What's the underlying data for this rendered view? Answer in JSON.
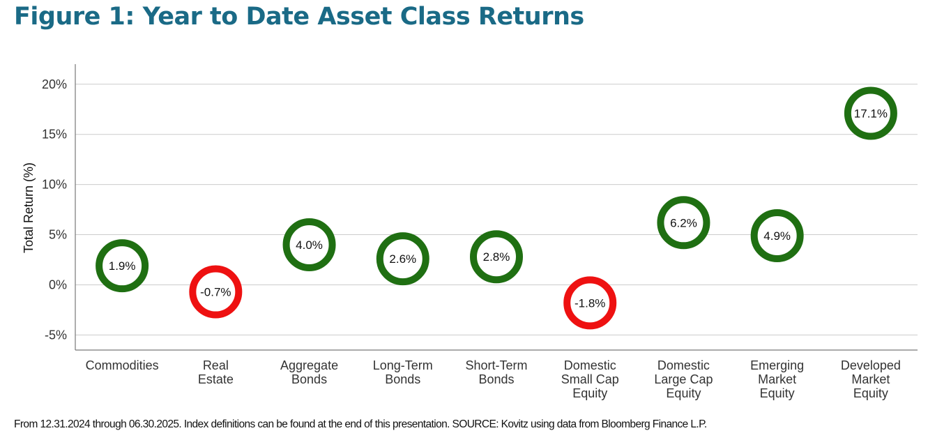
{
  "title": "Figure 1: Year to Date Asset Class Returns",
  "footnote": "From 12.31.2024 through 06.30.2025. Index definitions can be found at the end of this presentation. SOURCE: Kovitz using data from Bloomberg Finance L.P.",
  "colors": {
    "title": "#1a6a86",
    "positive": "#1f6f12",
    "negative": "#ee1111",
    "grid": "#cccccc",
    "axis": "#777777"
  },
  "chart_data": {
    "type": "scatter",
    "ylabel": "Total Return (%)",
    "xlabel": "",
    "ylim": [
      -6.5,
      22
    ],
    "yticks": [
      20,
      15,
      10,
      5,
      0,
      -5
    ],
    "ytick_labels": [
      "20%",
      "15%",
      "10%",
      "5%",
      "0%",
      "-5%"
    ],
    "grid": true,
    "categories": [
      [
        "Commodities"
      ],
      [
        "Real",
        "Estate"
      ],
      [
        "Aggregate",
        "Bonds"
      ],
      [
        "Long-Term",
        "Bonds"
      ],
      [
        "Short-Term",
        "Bonds"
      ],
      [
        "Domestic",
        "Small Cap",
        "Equity"
      ],
      [
        "Domestic",
        "Large Cap",
        "Equity"
      ],
      [
        "Emerging",
        "Market",
        "Equity"
      ],
      [
        "Developed",
        "Market",
        "Equity"
      ]
    ],
    "values": [
      1.9,
      -0.7,
      4.0,
      2.6,
      2.8,
      -1.8,
      6.2,
      4.9,
      17.1
    ],
    "data_labels": [
      "1.9%",
      "-0.7%",
      "4.0%",
      "2.6%",
      "2.8%",
      "-1.8%",
      "6.2%",
      "4.9%",
      "17.1%"
    ]
  }
}
